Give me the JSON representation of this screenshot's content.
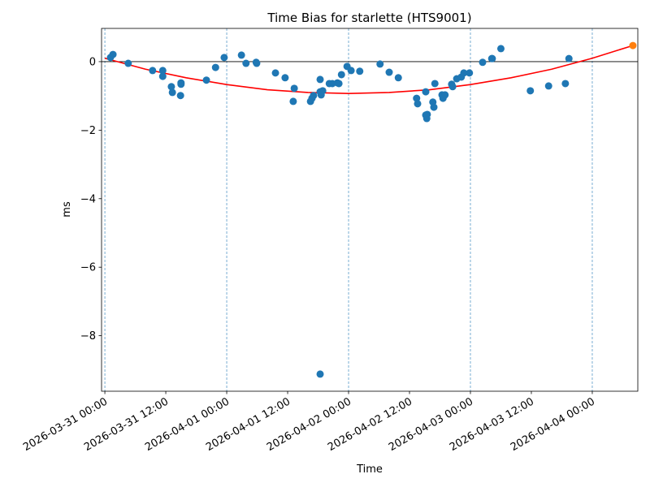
{
  "chart_data": {
    "type": "scatter",
    "title": "Time Bias for starlette (HTS9001)",
    "xlabel": "Time",
    "ylabel": "ms",
    "xlim": [
      "2026-03-30 23:21",
      "2026-04-04 08:58"
    ],
    "xticks": [
      "2026-03-31 00:00",
      "2026-03-31 12:00",
      "2026-04-01 00:00",
      "2026-04-01 12:00",
      "2026-04-02 00:00",
      "2026-04-02 12:00",
      "2026-04-03 00:00",
      "2026-04-03 12:00",
      "2026-04-04 00:00"
    ],
    "ylim": [
      -9.62,
      0.97
    ],
    "yticks": [
      {
        "value": -8,
        "label": "−8"
      },
      {
        "value": -6,
        "label": "−6"
      },
      {
        "value": -4,
        "label": "−4"
      },
      {
        "value": -2,
        "label": "−2"
      },
      0
    ],
    "vlines": [
      "2026-03-31 00:00",
      "2026-04-01 00:00",
      "2026-04-02 00:00",
      "2026-04-03 00:00",
      "2026-04-04 00:00"
    ],
    "hline": 0,
    "series": [
      {
        "type": "scatter",
        "color": "#1f77b4",
        "x": [
          "2026-03-31 01:06",
          "2026-03-31 01:36",
          "2026-03-31 04:36",
          "2026-03-31 09:24",
          "2026-03-31 11:24",
          "2026-03-31 11:24",
          "2026-03-31 13:06",
          "2026-03-31 13:18",
          "2026-03-31 15:00",
          "2026-03-31 15:00",
          "2026-03-31 14:54",
          "2026-03-31 20:00",
          "2026-03-31 21:48",
          "2026-03-31 23:30",
          "2026-04-01 02:54",
          "2026-04-01 03:48",
          "2026-04-01 05:48",
          "2026-04-01 05:54",
          "2026-04-01 09:36",
          "2026-04-01 11:30",
          "2026-04-01 13:06",
          "2026-04-01 13:18",
          "2026-04-01 16:30",
          "2026-04-01 16:48",
          "2026-04-01 17:06",
          "2026-04-01 18:24",
          "2026-04-01 18:24",
          "2026-04-01 18:36",
          "2026-04-01 18:54",
          "2026-04-01 18:24",
          "2026-04-01 20:12",
          "2026-04-01 20:48",
          "2026-04-01 21:48",
          "2026-04-01 22:06",
          "2026-04-01 22:36",
          "2026-04-01 23:42",
          "2026-04-02 00:30",
          "2026-04-02 02:12",
          "2026-04-02 06:12",
          "2026-04-02 08:00",
          "2026-04-02 09:48",
          "2026-04-02 13:24",
          "2026-04-02 13:36",
          "2026-04-02 15:12",
          "2026-04-02 15:12",
          "2026-04-02 15:24",
          "2026-04-02 15:30",
          "2026-04-02 16:36",
          "2026-04-02 16:48",
          "2026-04-02 17:00",
          "2026-04-02 18:24",
          "2026-04-02 18:36",
          "2026-04-02 19:00",
          "2026-04-02 20:18",
          "2026-04-02 20:30",
          "2026-04-02 21:18",
          "2026-04-02 22:12",
          "2026-04-02 22:42",
          "2026-04-02 23:48",
          "2026-04-03 02:24",
          "2026-04-03 04:12",
          "2026-04-03 04:18",
          "2026-04-03 06:00",
          "2026-04-03 11:48",
          "2026-04-03 15:24",
          "2026-04-03 18:42",
          "2026-04-03 19:24"
        ],
        "values": [
          0.12,
          0.21,
          -0.05,
          -0.26,
          -0.26,
          -0.43,
          -0.73,
          -0.9,
          -0.62,
          -0.66,
          -0.99,
          -0.54,
          -0.17,
          0.12,
          0.19,
          -0.05,
          -0.02,
          -0.05,
          -0.33,
          -0.47,
          -1.16,
          -0.78,
          -1.16,
          -1.07,
          -0.99,
          -0.52,
          -0.88,
          -0.97,
          -0.85,
          -9.12,
          -0.64,
          -0.64,
          -0.62,
          -0.64,
          -0.38,
          -0.14,
          -0.26,
          -0.28,
          -0.07,
          -0.31,
          -0.47,
          -1.07,
          -1.23,
          -0.88,
          -1.56,
          -1.66,
          -1.54,
          -1.18,
          -1.33,
          -0.64,
          -0.97,
          -1.07,
          -0.97,
          -0.66,
          -0.73,
          -0.5,
          -0.45,
          -0.33,
          -0.33,
          -0.02,
          0.09,
          0.09,
          0.38,
          -0.85,
          -0.71,
          -0.64,
          0.09
        ]
      },
      {
        "type": "line",
        "color": "#ff0000",
        "x": [
          "2026-03-31 00:00",
          "2026-03-31 08:00",
          "2026-03-31 16:00",
          "2026-04-01 00:00",
          "2026-04-01 08:00",
          "2026-04-01 16:00",
          "2026-04-02 00:00",
          "2026-04-02 08:00",
          "2026-04-02 16:00",
          "2026-04-03 00:00",
          "2026-04-03 08:00",
          "2026-04-03 16:00",
          "2026-04-04 00:00",
          "2026-04-04 08:00"
        ],
        "values": [
          0.1,
          -0.22,
          -0.47,
          -0.67,
          -0.82,
          -0.9,
          -0.93,
          -0.9,
          -0.82,
          -0.67,
          -0.47,
          -0.22,
          0.1,
          0.47
        ]
      },
      {
        "type": "scatter",
        "color": "#ff7f0e",
        "x": [
          "2026-04-04 08:00"
        ],
        "values": [
          0.47
        ]
      }
    ]
  }
}
